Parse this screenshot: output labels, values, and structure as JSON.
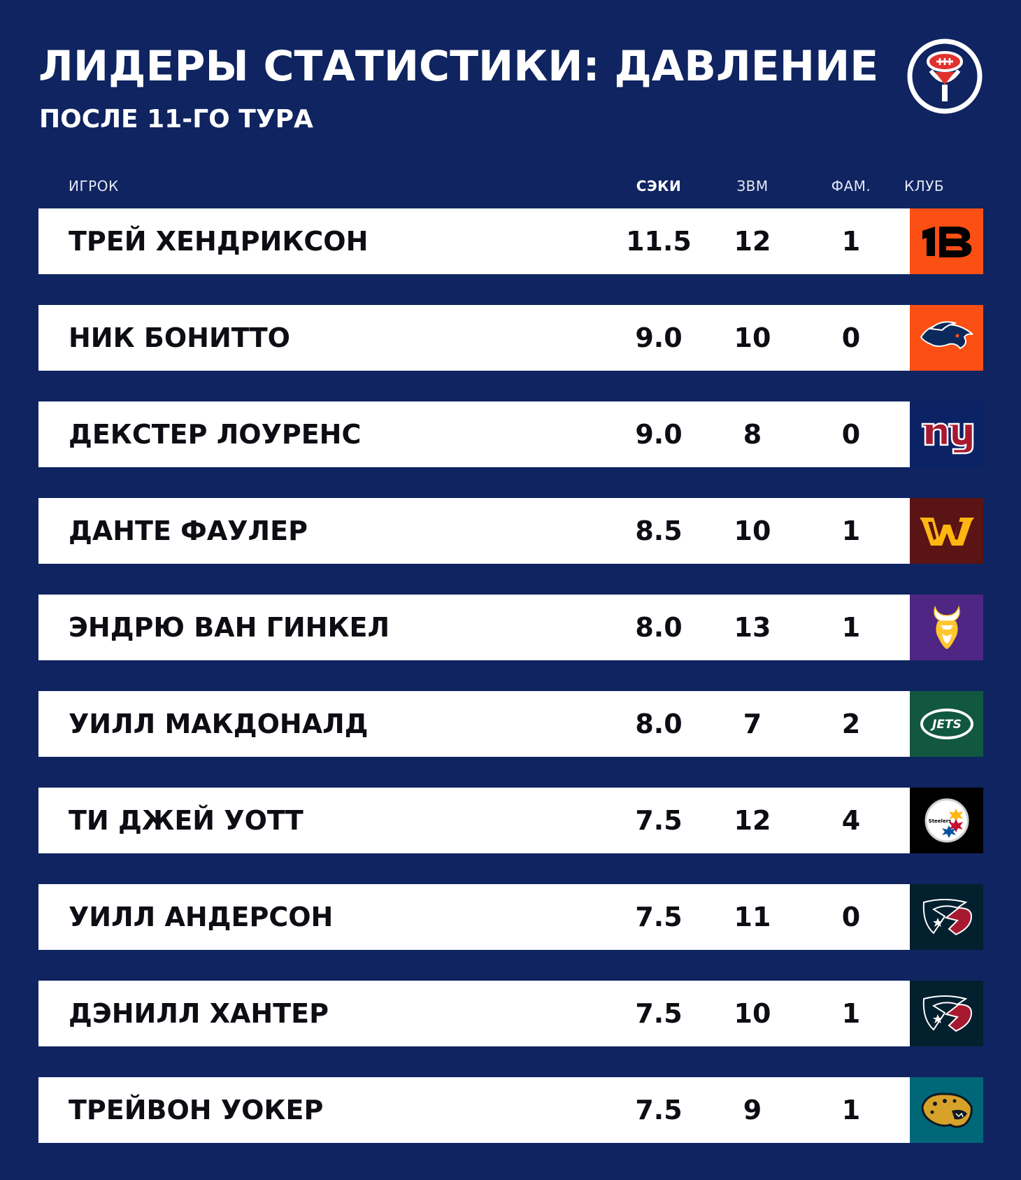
{
  "header": {
    "title": "ЛИДЕРЫ СТАТИСТИКИ: ДАВЛЕНИЕ",
    "subtitle": "ПОСЛЕ 11-ГО ТУРА"
  },
  "logo": {
    "icon": "football-microphone-logo"
  },
  "columns": {
    "player": "ИГРОК",
    "sacks": "СЭКИ",
    "qb_hits": "ЗВМ",
    "fumbles": "ФАМ.",
    "club": "КЛУБ"
  },
  "rows": [
    {
      "name": "ТРЕЙ ХЕНДРИКСОН",
      "sacks": "11.5",
      "qb_hits": "12",
      "fumbles": "1",
      "club_icon": "bengals-logo",
      "club_color": "#fb4f14",
      "club_text": ""
    },
    {
      "name": "НИК БОНИТТО",
      "sacks": "9.0",
      "qb_hits": "10",
      "fumbles": "0",
      "club_icon": "broncos-logo",
      "club_color": "#fb4f14",
      "club_text": ""
    },
    {
      "name": "ДЕКСТЕР ЛОУРЕНС",
      "sacks": "9.0",
      "qb_hits": "8",
      "fumbles": "0",
      "club_icon": "giants-logo",
      "club_color": "#0b2265",
      "club_text": ""
    },
    {
      "name": "ДАНТЕ ФАУЛЕР",
      "sacks": "8.5",
      "qb_hits": "10",
      "fumbles": "1",
      "club_icon": "commanders-logo",
      "club_color": "#5a1414",
      "club_text": ""
    },
    {
      "name": "ЭНДРЮ ВАН ГИНКЕЛ",
      "sacks": "8.0",
      "qb_hits": "13",
      "fumbles": "1",
      "club_icon": "vikings-logo",
      "club_color": "#4f2683",
      "club_text": ""
    },
    {
      "name": "УИЛЛ МАКДОНАЛД",
      "sacks": "8.0",
      "qb_hits": "7",
      "fumbles": "2",
      "club_icon": "jets-logo",
      "club_color": "#125740",
      "club_text": "JETS"
    },
    {
      "name": "ТИ ДЖЕЙ УОТТ",
      "sacks": "7.5",
      "qb_hits": "12",
      "fumbles": "4",
      "club_icon": "steelers-logo",
      "club_color": "#000000",
      "club_text": "Steelers"
    },
    {
      "name": "УИЛЛ АНДЕРСОН",
      "sacks": "7.5",
      "qb_hits": "11",
      "fumbles": "0",
      "club_icon": "texans-logo",
      "club_color": "#03202f",
      "club_text": ""
    },
    {
      "name": "ДЭНИЛЛ ХАНТЕР",
      "sacks": "7.5",
      "qb_hits": "10",
      "fumbles": "1",
      "club_icon": "texans-logo",
      "club_color": "#03202f",
      "club_text": ""
    },
    {
      "name": "ТРЕЙВОН УОКЕР",
      "sacks": "7.5",
      "qb_hits": "9",
      "fumbles": "1",
      "club_icon": "jaguars-logo",
      "club_color": "#006778",
      "club_text": ""
    }
  ],
  "colors": {
    "background": "#0f2460",
    "row_background": "#ffffff",
    "text_dark": "#0d0d14",
    "accent_red": "#e0322e"
  }
}
